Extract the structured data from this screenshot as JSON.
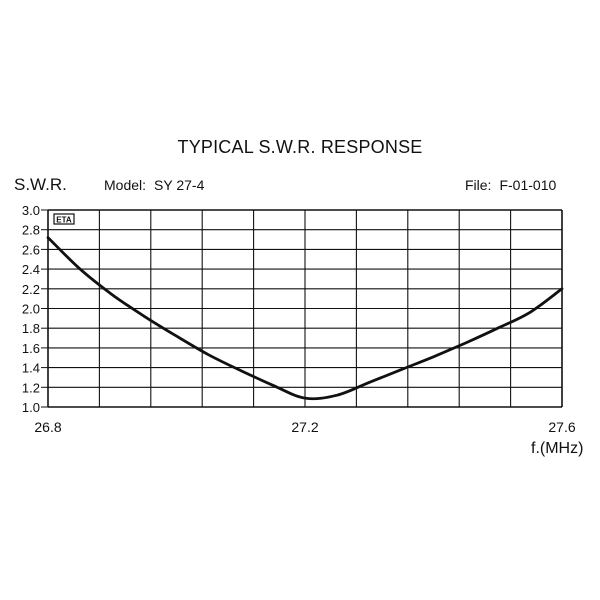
{
  "header": {
    "title": "TYPICAL S.W.R. RESPONSE",
    "model_label": "Model:",
    "model_value": "SY 27-4",
    "file_label": "File:",
    "file_value": "F-01-010"
  },
  "logo_text": "ETA",
  "chart_data": {
    "type": "line",
    "title": "TYPICAL S.W.R. RESPONSE",
    "ylabel": "S.W.R.",
    "xlabel": "f.(MHz)",
    "xlim": [
      26.8,
      27.6
    ],
    "ylim": [
      1.0,
      3.0
    ],
    "x_ticks": [
      "26.8",
      "27.2",
      "27.6"
    ],
    "y_ticks": [
      "3.0",
      "2.8",
      "2.6",
      "2.4",
      "2.2",
      "2.0",
      "1.8",
      "1.6",
      "1.4",
      "1.2",
      "1.0"
    ],
    "grid": true,
    "series": [
      {
        "x": [
          26.8,
          26.85,
          26.9,
          26.95,
          27.0,
          27.05,
          27.1,
          27.15,
          27.2,
          27.25,
          27.3,
          27.35,
          27.4,
          27.45,
          27.5,
          27.55,
          27.6
        ],
        "values": [
          2.72,
          2.4,
          2.14,
          1.92,
          1.72,
          1.53,
          1.37,
          1.22,
          1.09,
          1.12,
          1.25,
          1.38,
          1.51,
          1.65,
          1.8,
          1.96,
          2.2
        ]
      }
    ]
  }
}
